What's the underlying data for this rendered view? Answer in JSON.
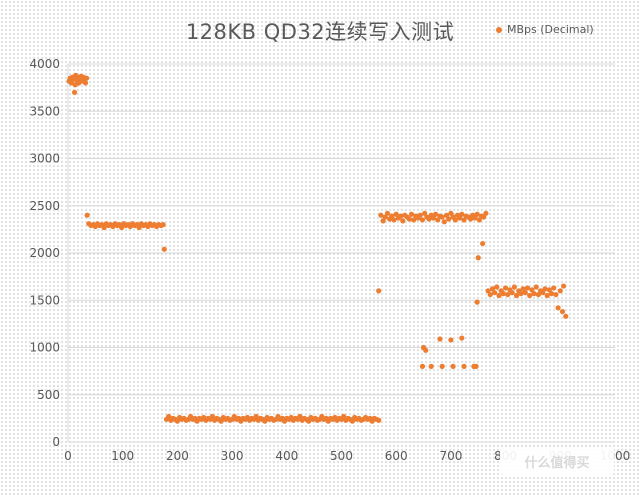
{
  "chart_data": {
    "type": "scatter",
    "title": "128KB QD32连续写入测试",
    "xlabel": "",
    "ylabel": "",
    "xlim": [
      0,
      1000
    ],
    "ylim": [
      0,
      4000
    ],
    "x_ticks": [
      0,
      100,
      200,
      300,
      400,
      500,
      600,
      700,
      800,
      900,
      1000
    ],
    "y_ticks": [
      0,
      500,
      1000,
      1500,
      2000,
      2500,
      3000,
      3500,
      4000
    ],
    "grid": "horizontal",
    "legend_position": "top-right",
    "marker_color": "#ED7D31",
    "series": [
      {
        "name": "MBps (Decimal)",
        "points": [
          [
            2,
            3820
          ],
          [
            4,
            3850
          ],
          [
            6,
            3800
          ],
          [
            8,
            3860
          ],
          [
            10,
            3840
          ],
          [
            12,
            3700
          ],
          [
            13,
            3780
          ],
          [
            14,
            3880
          ],
          [
            16,
            3830
          ],
          [
            18,
            3860
          ],
          [
            20,
            3800
          ],
          [
            22,
            3850
          ],
          [
            24,
            3870
          ],
          [
            26,
            3820
          ],
          [
            28,
            3860
          ],
          [
            30,
            3840
          ],
          [
            32,
            3800
          ],
          [
            34,
            3850
          ],
          [
            35,
            2400
          ],
          [
            38,
            2310
          ],
          [
            42,
            2290
          ],
          [
            46,
            2300
          ],
          [
            50,
            2280
          ],
          [
            54,
            2310
          ],
          [
            58,
            2290
          ],
          [
            62,
            2300
          ],
          [
            66,
            2270
          ],
          [
            70,
            2310
          ],
          [
            74,
            2290
          ],
          [
            78,
            2300
          ],
          [
            82,
            2280
          ],
          [
            86,
            2310
          ],
          [
            90,
            2290
          ],
          [
            94,
            2300
          ],
          [
            98,
            2270
          ],
          [
            102,
            2310
          ],
          [
            106,
            2290
          ],
          [
            110,
            2300
          ],
          [
            114,
            2280
          ],
          [
            118,
            2310
          ],
          [
            122,
            2290
          ],
          [
            126,
            2300
          ],
          [
            130,
            2270
          ],
          [
            134,
            2310
          ],
          [
            138,
            2290
          ],
          [
            142,
            2300
          ],
          [
            146,
            2280
          ],
          [
            150,
            2310
          ],
          [
            154,
            2290
          ],
          [
            158,
            2300
          ],
          [
            162,
            2280
          ],
          [
            166,
            2300
          ],
          [
            170,
            2290
          ],
          [
            174,
            2300
          ],
          [
            176,
            2040
          ],
          [
            180,
            240
          ],
          [
            184,
            270
          ],
          [
            188,
            230
          ],
          [
            192,
            250
          ],
          [
            196,
            240
          ],
          [
            200,
            220
          ],
          [
            204,
            260
          ],
          [
            208,
            240
          ],
          [
            212,
            250
          ],
          [
            216,
            230
          ],
          [
            220,
            240
          ],
          [
            224,
            270
          ],
          [
            228,
            240
          ],
          [
            232,
            250
          ],
          [
            236,
            220
          ],
          [
            240,
            250
          ],
          [
            244,
            240
          ],
          [
            248,
            260
          ],
          [
            252,
            230
          ],
          [
            256,
            250
          ],
          [
            260,
            240
          ],
          [
            264,
            270
          ],
          [
            268,
            230
          ],
          [
            272,
            250
          ],
          [
            276,
            240
          ],
          [
            280,
            220
          ],
          [
            284,
            260
          ],
          [
            288,
            240
          ],
          [
            292,
            250
          ],
          [
            296,
            230
          ],
          [
            300,
            240
          ],
          [
            304,
            270
          ],
          [
            308,
            240
          ],
          [
            312,
            250
          ],
          [
            316,
            220
          ],
          [
            320,
            250
          ],
          [
            324,
            240
          ],
          [
            328,
            260
          ],
          [
            332,
            230
          ],
          [
            336,
            250
          ],
          [
            340,
            240
          ],
          [
            344,
            270
          ],
          [
            348,
            230
          ],
          [
            352,
            250
          ],
          [
            356,
            240
          ],
          [
            360,
            220
          ],
          [
            364,
            260
          ],
          [
            368,
            240
          ],
          [
            372,
            250
          ],
          [
            376,
            230
          ],
          [
            380,
            240
          ],
          [
            384,
            270
          ],
          [
            388,
            240
          ],
          [
            392,
            250
          ],
          [
            396,
            220
          ],
          [
            400,
            250
          ],
          [
            404,
            240
          ],
          [
            408,
            260
          ],
          [
            412,
            230
          ],
          [
            416,
            250
          ],
          [
            420,
            240
          ],
          [
            424,
            270
          ],
          [
            428,
            230
          ],
          [
            432,
            250
          ],
          [
            436,
            240
          ],
          [
            440,
            220
          ],
          [
            444,
            260
          ],
          [
            448,
            240
          ],
          [
            452,
            250
          ],
          [
            456,
            230
          ],
          [
            460,
            240
          ],
          [
            464,
            270
          ],
          [
            468,
            240
          ],
          [
            472,
            250
          ],
          [
            476,
            220
          ],
          [
            480,
            250
          ],
          [
            484,
            240
          ],
          [
            488,
            260
          ],
          [
            492,
            230
          ],
          [
            496,
            250
          ],
          [
            500,
            240
          ],
          [
            504,
            270
          ],
          [
            508,
            230
          ],
          [
            512,
            250
          ],
          [
            516,
            240
          ],
          [
            520,
            220
          ],
          [
            524,
            260
          ],
          [
            528,
            240
          ],
          [
            532,
            250
          ],
          [
            536,
            230
          ],
          [
            540,
            240
          ],
          [
            544,
            260
          ],
          [
            548,
            240
          ],
          [
            552,
            250
          ],
          [
            556,
            220
          ],
          [
            560,
            250
          ],
          [
            564,
            240
          ],
          [
            568,
            230
          ],
          [
            568,
            1600
          ],
          [
            572,
            2400
          ],
          [
            576,
            2340
          ],
          [
            580,
            2380
          ],
          [
            584,
            2420
          ],
          [
            588,
            2360
          ],
          [
            592,
            2390
          ],
          [
            596,
            2350
          ],
          [
            600,
            2410
          ],
          [
            604,
            2370
          ],
          [
            608,
            2390
          ],
          [
            612,
            2340
          ],
          [
            616,
            2400
          ],
          [
            620,
            2380
          ],
          [
            624,
            2360
          ],
          [
            628,
            2410
          ],
          [
            632,
            2350
          ],
          [
            636,
            2390
          ],
          [
            640,
            2370
          ],
          [
            644,
            2400
          ],
          [
            648,
            2350
          ],
          [
            652,
            2420
          ],
          [
            656,
            2380
          ],
          [
            660,
            2360
          ],
          [
            664,
            2400
          ],
          [
            668,
            2370
          ],
          [
            672,
            2410
          ],
          [
            676,
            2350
          ],
          [
            680,
            2390
          ],
          [
            684,
            2380
          ],
          [
            688,
            2330
          ],
          [
            692,
            2400
          ],
          [
            696,
            2360
          ],
          [
            700,
            2420
          ],
          [
            704,
            2380
          ],
          [
            708,
            2350
          ],
          [
            712,
            2400
          ],
          [
            716,
            2370
          ],
          [
            720,
            2410
          ],
          [
            724,
            2350
          ],
          [
            728,
            2390
          ],
          [
            732,
            2380
          ],
          [
            736,
            2360
          ],
          [
            740,
            2400
          ],
          [
            744,
            2370
          ],
          [
            748,
            2410
          ],
          [
            752,
            2350
          ],
          [
            756,
            2390
          ],
          [
            760,
            2380
          ],
          [
            764,
            2420
          ],
          [
            650,
            1000
          ],
          [
            654,
            970
          ],
          [
            648,
            800
          ],
          [
            664,
            800
          ],
          [
            680,
            1090
          ],
          [
            684,
            800
          ],
          [
            700,
            1080
          ],
          [
            704,
            800
          ],
          [
            720,
            1100
          ],
          [
            724,
            800
          ],
          [
            742,
            800
          ],
          [
            746,
            800
          ],
          [
            748,
            1480
          ],
          [
            750,
            1950
          ],
          [
            758,
            2100
          ],
          [
            768,
            1600
          ],
          [
            772,
            1560
          ],
          [
            776,
            1620
          ],
          [
            780,
            1580
          ],
          [
            784,
            1640
          ],
          [
            788,
            1550
          ],
          [
            792,
            1600
          ],
          [
            796,
            1570
          ],
          [
            800,
            1630
          ],
          [
            804,
            1560
          ],
          [
            808,
            1610
          ],
          [
            812,
            1580
          ],
          [
            816,
            1640
          ],
          [
            820,
            1550
          ],
          [
            824,
            1600
          ],
          [
            828,
            1570
          ],
          [
            832,
            1620
          ],
          [
            836,
            1580
          ],
          [
            840,
            1630
          ],
          [
            844,
            1550
          ],
          [
            848,
            1610
          ],
          [
            852,
            1570
          ],
          [
            856,
            1640
          ],
          [
            860,
            1560
          ],
          [
            864,
            1600
          ],
          [
            868,
            1580
          ],
          [
            872,
            1620
          ],
          [
            876,
            1550
          ],
          [
            880,
            1610
          ],
          [
            884,
            1570
          ],
          [
            888,
            1630
          ],
          [
            892,
            1560
          ],
          [
            896,
            1420
          ],
          [
            900,
            1600
          ],
          [
            904,
            1380
          ],
          [
            906,
            1650
          ],
          [
            910,
            1330
          ]
        ]
      }
    ]
  },
  "watermark_text": "什么值得买"
}
